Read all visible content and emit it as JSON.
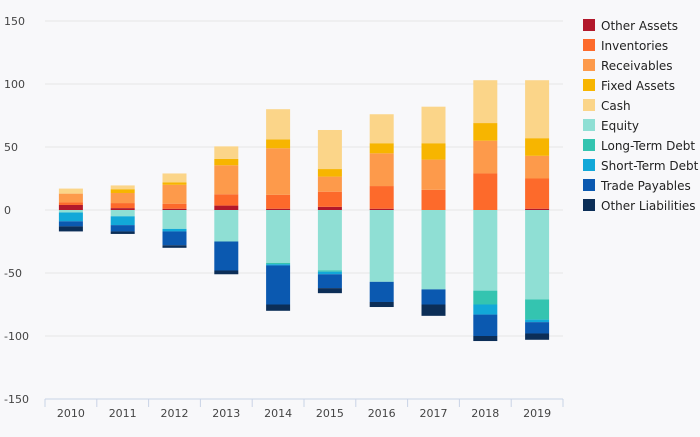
{
  "chart_data": {
    "type": "bar",
    "stacked": true,
    "categories": [
      "2010",
      "2011",
      "2012",
      "2013",
      "2014",
      "2015",
      "2016",
      "2017",
      "2018",
      "2019"
    ],
    "ylim": [
      -150,
      150
    ],
    "yticks": [
      150,
      100,
      50,
      0,
      -50,
      -100,
      -150
    ],
    "grid": true,
    "legend_position": "right",
    "series": [
      {
        "name": "Other Assets",
        "color": "#b2182b",
        "values": [
          4,
          1.5,
          1,
          3.5,
          1,
          2.5,
          1,
          0,
          0,
          1
        ]
      },
      {
        "name": "Inventories",
        "color": "#fd6a2b",
        "values": [
          2,
          4,
          4,
          9,
          11,
          12,
          18,
          16,
          29,
          24
        ]
      },
      {
        "name": "Receivables",
        "color": "#fd9a4b",
        "values": [
          7,
          8,
          15,
          23,
          37,
          12,
          26,
          24,
          26,
          18
        ]
      },
      {
        "name": "Fixed Assets",
        "color": "#f7b500",
        "values": [
          0,
          3,
          2,
          5,
          7,
          6,
          8,
          13,
          14,
          14
        ]
      },
      {
        "name": "Cash",
        "color": "#fbd589",
        "values": [
          4,
          3,
          7,
          10,
          24,
          31,
          23,
          29,
          34,
          46
        ]
      },
      {
        "name": "Equity",
        "color": "#8fdfd4",
        "values": [
          -2,
          -5,
          -15,
          -25,
          -42,
          -48,
          -57,
          -63,
          -64,
          -71
        ]
      },
      {
        "name": "Long-Term Debt",
        "color": "#34c4b0",
        "values": [
          0,
          0,
          0,
          0,
          -1,
          -1,
          0,
          0,
          -11,
          -16
        ]
      },
      {
        "name": "Short-Term Debt",
        "color": "#12a8d8",
        "values": [
          -7,
          -7,
          -2,
          0,
          -1,
          -2,
          0,
          0,
          -8,
          -2
        ]
      },
      {
        "name": "Trade Payables",
        "color": "#0b59b0",
        "values": [
          -4,
          -5,
          -11,
          -23,
          -31,
          -11,
          -16,
          -12,
          -17,
          -9
        ]
      },
      {
        "name": "Other Liabilities",
        "color": "#0c2e57",
        "values": [
          -4,
          -2,
          -2,
          -3,
          -5,
          -4,
          -4,
          -9,
          -4,
          -5
        ]
      }
    ]
  }
}
